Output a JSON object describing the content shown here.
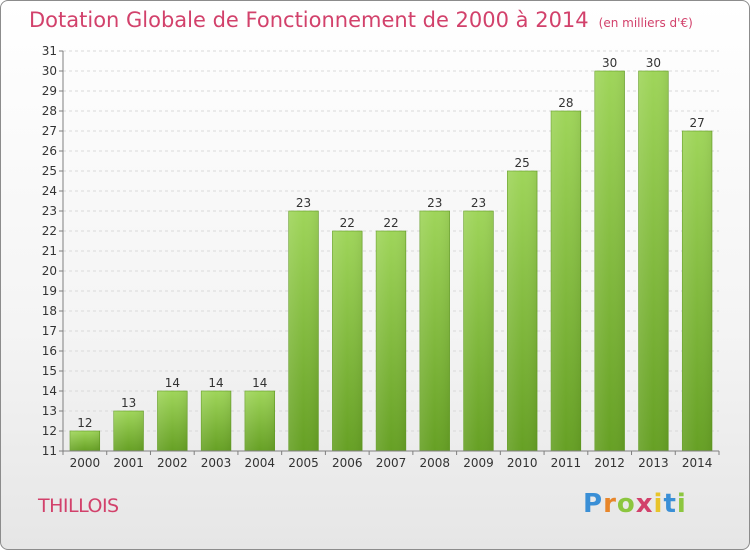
{
  "header": {
    "title": "Dotation Globale de Fonctionnement de 2000 à 2014",
    "unit": "(en milliers d'€)"
  },
  "footer": {
    "city": "THILLOIS",
    "logo_letters": [
      "P",
      "r",
      "o",
      "x",
      "i",
      "t",
      "i"
    ],
    "logo_colors": [
      "#3a8fd6",
      "#e8862a",
      "#8cc63f",
      "#d2416b",
      "#e8c42a",
      "#3a8fd6",
      "#8cc63f"
    ]
  },
  "colors": {
    "bar_light": "#9fd55a",
    "bar_dark": "#66a024",
    "axis": "#7f7f7f",
    "grid": "#d9d9d9",
    "text": "#333333"
  },
  "chart_data": {
    "type": "bar",
    "title": "Dotation Globale de Fonctionnement de 2000 à 2014",
    "categories": [
      "2000",
      "2001",
      "2002",
      "2003",
      "2004",
      "2005",
      "2006",
      "2007",
      "2008",
      "2009",
      "2010",
      "2011",
      "2012",
      "2013",
      "2014"
    ],
    "values": [
      12,
      13,
      14,
      14,
      14,
      23,
      22,
      22,
      23,
      23,
      25,
      28,
      30,
      30,
      27
    ],
    "ylim": [
      11,
      31
    ],
    "yticks": [
      11,
      12,
      13,
      14,
      15,
      16,
      17,
      18,
      19,
      20,
      21,
      22,
      23,
      24,
      25,
      26,
      27,
      28,
      29,
      30,
      31
    ],
    "grid": true,
    "xlabel": "",
    "ylabel": ""
  }
}
